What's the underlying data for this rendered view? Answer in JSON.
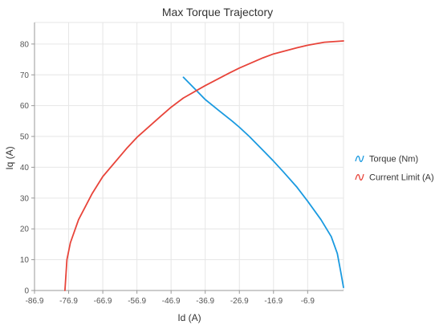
{
  "chart_data": {
    "type": "line",
    "title": "Max Torque Trajectory",
    "xlabel": "Id (A)",
    "ylabel": "Iq (A)",
    "xlim": [
      -86.9,
      3.6
    ],
    "ylim": [
      0,
      87
    ],
    "x_ticks": [
      -86.9,
      -76.9,
      -66.9,
      -56.9,
      -46.9,
      -36.9,
      -26.9,
      -16.9,
      -6.9
    ],
    "y_ticks": [
      0,
      10,
      20,
      30,
      40,
      50,
      60,
      70,
      80
    ],
    "grid": true,
    "legend_position": "right",
    "series": [
      {
        "name": "Torque (Nm)",
        "color": "#1a9ae0",
        "points": [
          [
            -43.3,
            69.2
          ],
          [
            -40.0,
            65.5
          ],
          [
            -36.9,
            62.0
          ],
          [
            -33.0,
            58.5
          ],
          [
            -29.0,
            55.0
          ],
          [
            -26.9,
            53.0
          ],
          [
            -24.0,
            50.0
          ],
          [
            -20.0,
            45.5
          ],
          [
            -16.9,
            42.0
          ],
          [
            -14.0,
            38.5
          ],
          [
            -10.0,
            33.5
          ],
          [
            -6.9,
            29.0
          ],
          [
            -3.0,
            23.0
          ],
          [
            0.0,
            17.5
          ],
          [
            1.8,
            12.0
          ],
          [
            2.8,
            6.0
          ],
          [
            3.6,
            1.0
          ]
        ]
      },
      {
        "name": "Current Limit (A)",
        "color": "#e8443a",
        "points": [
          [
            -78.0,
            0.0
          ],
          [
            -77.4,
            10.0
          ],
          [
            -76.4,
            15.5
          ],
          [
            -74.0,
            23.0
          ],
          [
            -70.0,
            31.5
          ],
          [
            -66.9,
            37.0
          ],
          [
            -60.0,
            46.0
          ],
          [
            -56.9,
            49.7
          ],
          [
            -50.0,
            56.5
          ],
          [
            -46.9,
            59.5
          ],
          [
            -43.3,
            62.5
          ],
          [
            -36.9,
            66.5
          ],
          [
            -30.0,
            70.5
          ],
          [
            -26.9,
            72.2
          ],
          [
            -20.0,
            75.5
          ],
          [
            -16.9,
            76.8
          ],
          [
            -10.0,
            78.8
          ],
          [
            -6.9,
            79.6
          ],
          [
            -2.0,
            80.6
          ],
          [
            3.6,
            81.0
          ]
        ]
      }
    ]
  }
}
